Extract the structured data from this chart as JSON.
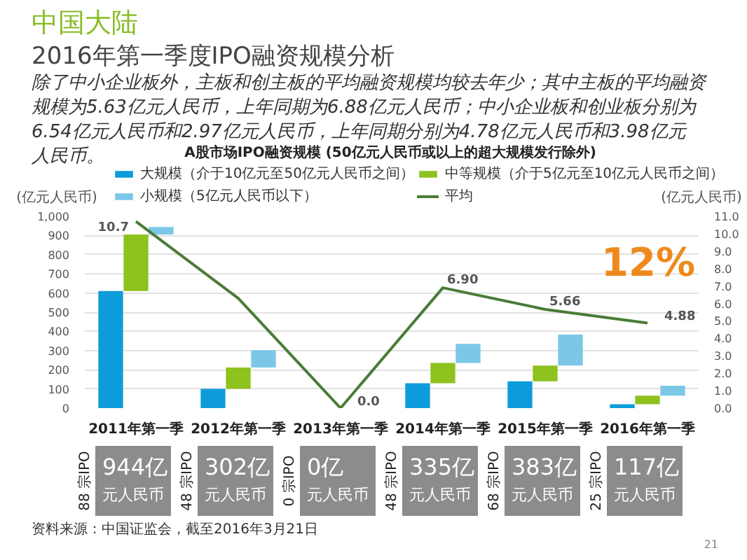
{
  "chart_data": {
    "type": "bar",
    "title": "中国大陆",
    "subtitle": "2016年第一季度IPO融资规模分析",
    "categories": [
      "2011年第一季",
      "2012年第一季",
      "2013年第一季",
      "2014年第一季",
      "2015年第一季",
      "2016年第一季"
    ],
    "series": [
      {
        "name": "大规模（介于10亿元至50亿元人民币之间）",
        "color": "#0c9cdb",
        "values": [
          610,
          100,
          0,
          130,
          140,
          20
        ]
      },
      {
        "name": "中等规模（介于5亿元至10亿元人民币之间）",
        "color": "#8dc21f",
        "values": [
          295,
          112,
          0,
          105,
          82,
          45
        ],
        "base": [
          610,
          100,
          null,
          130,
          140,
          20
        ]
      },
      {
        "name": "小规模（5亿元人民币以下）",
        "color": "#7cc7e8",
        "values": [
          39,
          90,
          0,
          100,
          161,
          52
        ],
        "base": [
          905,
          212,
          null,
          235,
          222,
          65
        ]
      },
      {
        "name": "平均",
        "type": "line",
        "axis": "y2",
        "color": "#4a7c37",
        "values": [
          10.7,
          6.3,
          0.0,
          6.9,
          5.66,
          4.88
        ],
        "value_labels": [
          "10.7",
          null,
          "0.0",
          "6.90",
          "5.66",
          "4.88"
        ]
      }
    ],
    "ylabel": "(亿元人民币)",
    "y2label": "(亿元人民币)",
    "ylim": [
      0,
      1000
    ],
    "yticks": [
      0,
      100,
      200,
      300,
      400,
      500,
      600,
      700,
      800,
      900,
      {
        "value": 1000,
        "label": "1,000"
      }
    ],
    "y2lim": [
      0,
      11
    ],
    "y2ticks": [
      {
        "value": 0,
        "label": "0.0"
      },
      {
        "value": 1,
        "label": "1.0"
      },
      {
        "value": 2,
        "label": "2.0"
      },
      {
        "value": 3,
        "label": "3.0"
      },
      {
        "value": 4,
        "label": "4.0"
      },
      {
        "value": 5,
        "label": "5.0"
      },
      {
        "value": 6,
        "label": "6.0"
      },
      {
        "value": 7,
        "label": "7.0"
      },
      {
        "value": 8,
        "label": "8.0"
      },
      {
        "value": 9,
        "label": "9.0"
      },
      {
        "value": 10,
        "label": "10.0"
      },
      {
        "value": 11,
        "label": "11.0"
      }
    ],
    "grid": "y",
    "legend": "top",
    "totals": [
      "944亿",
      "302亿",
      "0亿",
      "335亿",
      "383亿",
      "117亿"
    ],
    "annotations": [
      "除了中小企业板外，主板和创主板的平均融资规模均较去年少；其中主板的平均融资规模为5.63亿元人民币，上年同期为6.88亿元人民币；中小企业板和创业板分别为6.54亿元人民币和2.97亿元人民币，上年同期分别为4.78亿元人民币和3.98亿元人民币。",
      "A股市场IPO融资规模 (50亿元人民币或以上的超大规模发行除外)",
      "12%",
      "88 宗IPO",
      "48 宗IPO",
      "0 宗IPO",
      "48 宗IPO",
      "68 宗IPO",
      "25 宗IPO",
      "元人民币",
      "元人民币",
      "元人民币",
      "元人民币",
      "元人民币",
      "元人民币",
      "资料来源：中国证监会，截至2016年3月21日",
      "21"
    ]
  }
}
